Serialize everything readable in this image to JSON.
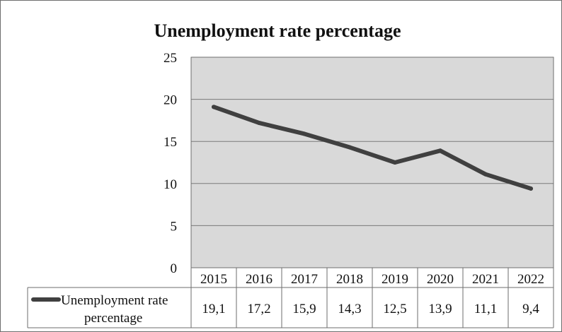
{
  "chart_data": {
    "type": "line",
    "title": "Unemployment rate percentage",
    "xlabel": "",
    "ylabel": "",
    "ylim": [
      0,
      25
    ],
    "yticks": [
      0,
      5,
      10,
      15,
      20,
      25
    ],
    "categories": [
      "2015",
      "2016",
      "2017",
      "2018",
      "2019",
      "2020",
      "2021",
      "2022"
    ],
    "series": [
      {
        "name": "Unemployment rate percentage",
        "values": [
          19.1,
          17.2,
          15.9,
          14.3,
          12.5,
          13.9,
          11.1,
          9.4
        ],
        "value_labels": [
          "19,1",
          "17,2",
          "15,9",
          "14,3",
          "12,5",
          "13,9",
          "11,1",
          "9,4"
        ]
      }
    ],
    "legend": {
      "position": "bottom data table",
      "line1": "Unemployment rate",
      "line2": "percentage"
    },
    "grid": true,
    "colors": {
      "plot_background": "#d9d9d9",
      "gridline": "#7a7a7a",
      "series_line": "#404040",
      "border": "#6e6e6e"
    }
  }
}
